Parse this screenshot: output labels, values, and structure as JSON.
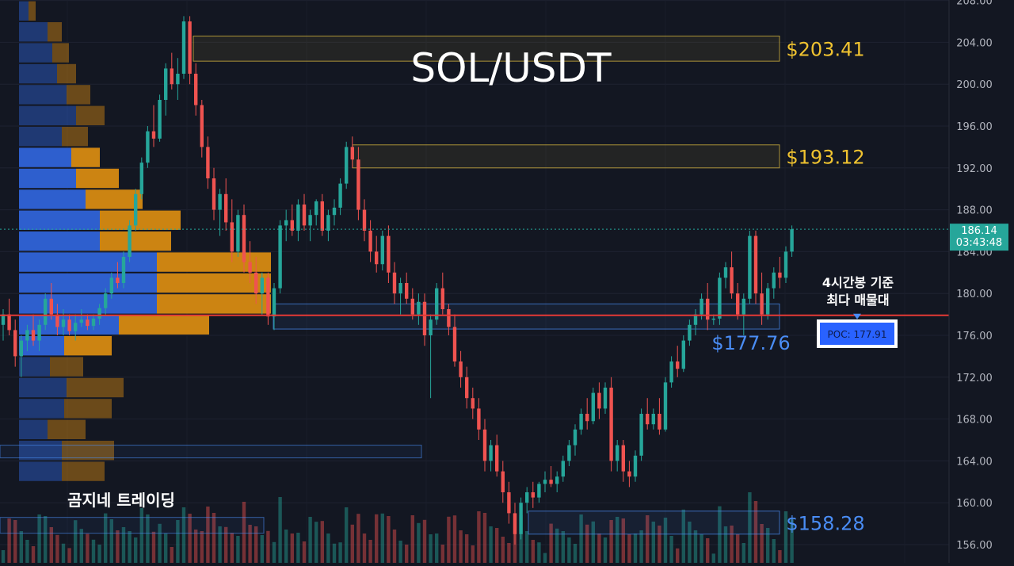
{
  "chart_data": {
    "type": "candlestick",
    "title": "SOL/USDT",
    "brand": "곰지네 트레이딩",
    "y_axis": {
      "range": [
        155,
        208
      ],
      "ticks": [
        156,
        160,
        164,
        168,
        172,
        176,
        180,
        184,
        188,
        192,
        196,
        200,
        204,
        208
      ],
      "tick_labels": [
        "156.00",
        "160.00",
        "164.00",
        "168.00",
        "172.00",
        "176.00",
        "180.00",
        "184.00",
        "188.00",
        "192.00",
        "196.00",
        "200.00",
        "204.00",
        "208.00"
      ]
    },
    "current_price": {
      "value": 186.14,
      "label": "186.14",
      "countdown": "03:43:48"
    },
    "poc": {
      "value": 177.91,
      "label": "POC: 177.91",
      "note_line1": "4시간봉 기준",
      "note_line2": "최다 매물대"
    },
    "zones": [
      {
        "label": "$203.41",
        "value": 203.41,
        "low": 202.2,
        "high": 204.6,
        "color": "#e8c440",
        "kind": "resistance"
      },
      {
        "label": "$193.12",
        "value": 193.12,
        "low": 192.0,
        "high": 194.2,
        "color": "#e8c440",
        "kind": "resistance"
      },
      {
        "label": "$177.76",
        "value": 177.76,
        "low": 176.6,
        "high": 179.0,
        "color": "#4a8df5",
        "kind": "support"
      },
      {
        "label": "$158.28",
        "value": 158.28,
        "low": 157.0,
        "high": 159.2,
        "color": "#4a8df5",
        "kind": "support"
      }
    ],
    "colors": {
      "up": "#26a69a",
      "down": "#ef5350",
      "volume_profile_buy": "#2f63d8",
      "volume_profile_sell": "#d68a12",
      "poc_line": "#e53935",
      "resistance_label": "#f0c330",
      "support_label": "#4a8df5",
      "current_price_bg": "#26a69a"
    },
    "candles": [
      [
        177,
        178.5,
        175.5,
        178
      ],
      [
        178,
        179.5,
        176,
        176.5
      ],
      [
        176.5,
        177.5,
        173,
        174
      ],
      [
        174,
        176,
        172,
        175.5
      ],
      [
        175.5,
        177,
        174.5,
        176.5
      ],
      [
        176.5,
        178,
        175,
        175.5
      ],
      [
        175.5,
        177.5,
        174.5,
        177
      ],
      [
        177,
        180,
        176.5,
        179.5
      ],
      [
        179.5,
        181,
        177.5,
        178
      ],
      [
        178,
        179,
        176,
        176.8
      ],
      [
        176.8,
        178.5,
        176,
        177.5
      ],
      [
        177.5,
        178,
        176,
        176.4
      ],
      [
        176.4,
        178,
        175.5,
        177.2
      ],
      [
        177.2,
        178.5,
        176.8,
        177.5
      ],
      [
        177.5,
        178,
        176.5,
        176.9
      ],
      [
        176.9,
        178,
        176.5,
        177.6
      ],
      [
        177.6,
        179,
        177,
        178.6
      ],
      [
        178.6,
        180.5,
        178,
        180
      ],
      [
        180,
        182,
        179.5,
        181.5
      ],
      [
        181.5,
        183,
        180.5,
        181
      ],
      [
        181,
        184,
        180.5,
        183.5
      ],
      [
        183.5,
        187,
        183,
        186.5
      ],
      [
        186.5,
        190,
        186,
        189.5
      ],
      [
        189.5,
        193,
        189,
        192.5
      ],
      [
        192.5,
        196,
        192,
        195.5
      ],
      [
        195.5,
        198,
        194,
        194.8
      ],
      [
        194.8,
        199,
        194.5,
        198.5
      ],
      [
        198.5,
        202,
        197,
        201.5
      ],
      [
        201.5,
        203,
        199.5,
        200
      ],
      [
        200,
        202.5,
        198.5,
        201
      ],
      [
        201,
        206.5,
        200.5,
        206
      ],
      [
        206,
        206.5,
        200,
        201
      ],
      [
        201,
        202,
        197,
        198
      ],
      [
        198,
        198.5,
        193,
        194
      ],
      [
        194,
        195,
        190,
        191
      ],
      [
        191,
        192,
        187,
        188
      ],
      [
        188,
        190,
        185.5,
        189.5
      ],
      [
        189.5,
        191,
        186,
        186.8
      ],
      [
        186.8,
        189,
        183,
        184
      ],
      [
        184,
        188,
        183.5,
        187.5
      ],
      [
        187.5,
        188.5,
        182,
        183
      ],
      [
        183,
        185,
        181,
        182
      ],
      [
        182,
        183.5,
        179,
        180
      ],
      [
        180,
        182,
        178,
        181.5
      ],
      [
        181.5,
        182,
        177,
        177.8
      ],
      [
        177.8,
        181,
        176.5,
        180.5
      ],
      [
        180.5,
        187,
        180,
        186.5
      ],
      [
        186.5,
        188,
        185,
        187
      ],
      [
        187,
        188.5,
        185.5,
        186
      ],
      [
        186,
        189,
        185,
        188.5
      ],
      [
        188.5,
        189.5,
        186,
        186.5
      ],
      [
        186.5,
        188,
        185,
        187.5
      ],
      [
        187.5,
        189,
        186.5,
        188.8
      ],
      [
        188.8,
        189.5,
        185.5,
        186
      ],
      [
        186,
        188,
        185,
        187.5
      ],
      [
        187.5,
        189,
        186.5,
        188.2
      ],
      [
        188.2,
        191,
        187.5,
        190.5
      ],
      [
        190.5,
        194.5,
        190,
        194
      ],
      [
        194,
        195,
        192,
        192.8
      ],
      [
        192.8,
        194,
        187,
        188
      ],
      [
        188,
        189,
        185,
        186
      ],
      [
        186,
        187,
        183,
        184
      ],
      [
        184,
        185.5,
        182,
        182.8
      ],
      [
        182.8,
        186,
        182.2,
        185.5
      ],
      [
        185.5,
        186.5,
        181,
        182
      ],
      [
        182,
        183,
        179,
        180
      ],
      [
        180,
        181.5,
        178,
        181
      ],
      [
        181,
        182,
        179,
        179.5
      ],
      [
        179.5,
        180.5,
        177.5,
        178
      ],
      [
        178,
        180,
        177,
        179.2
      ],
      [
        179.2,
        180,
        175,
        176
      ],
      [
        176,
        178,
        170,
        177.5
      ],
      [
        177.5,
        181,
        177,
        180.5
      ],
      [
        180.5,
        182,
        178,
        178.5
      ],
      [
        178.5,
        179,
        176,
        176.8
      ],
      [
        176.8,
        178,
        173,
        173.5
      ],
      [
        173.5,
        174.5,
        171,
        172
      ],
      [
        172,
        173,
        169,
        170
      ],
      [
        170,
        171,
        168,
        169
      ],
      [
        169,
        170,
        166,
        167
      ],
      [
        167,
        168,
        163,
        164
      ],
      [
        164,
        166,
        163,
        165.5
      ],
      [
        165.5,
        166.5,
        162.5,
        163
      ],
      [
        163,
        164,
        160,
        161
      ],
      [
        161,
        162,
        158,
        159
      ],
      [
        159,
        160,
        156,
        157
      ],
      [
        157,
        160.5,
        156.5,
        160
      ],
      [
        160,
        161.5,
        159,
        161
      ],
      [
        161,
        162,
        159.5,
        160.5
      ],
      [
        160.5,
        162,
        160,
        161.8
      ],
      [
        161.8,
        163,
        161,
        162.2
      ],
      [
        162.2,
        163.5,
        161.5,
        161.8
      ],
      [
        161.8,
        163,
        161,
        162.5
      ],
      [
        162.5,
        164.5,
        162,
        164
      ],
      [
        164,
        166,
        163.5,
        165.5
      ],
      [
        165.5,
        167.5,
        164.5,
        167
      ],
      [
        167,
        169,
        166.5,
        168.5
      ],
      [
        168.5,
        170,
        167,
        167.8
      ],
      [
        167.8,
        171,
        167.5,
        170.5
      ],
      [
        170.5,
        171.5,
        168,
        169
      ],
      [
        169,
        171.5,
        168.5,
        171
      ],
      [
        171,
        172,
        163,
        164
      ],
      [
        164,
        166,
        163,
        165.5
      ],
      [
        165.5,
        166,
        162,
        163
      ],
      [
        163,
        164,
        161.5,
        162.5
      ],
      [
        162.5,
        165,
        162,
        164.5
      ],
      [
        164.5,
        169,
        164,
        168.5
      ],
      [
        168.5,
        170,
        167,
        167.5
      ],
      [
        167.5,
        169,
        167,
        168.5
      ],
      [
        168.5,
        170,
        166.5,
        167
      ],
      [
        167,
        172,
        166.8,
        171.5
      ],
      [
        171.5,
        174,
        171,
        173.5
      ],
      [
        173.5,
        175,
        172,
        172.8
      ],
      [
        172.8,
        176,
        172.5,
        175.5
      ],
      [
        175.5,
        177.5,
        175,
        177
      ],
      [
        177,
        178.5,
        176,
        178
      ],
      [
        178,
        180,
        177.5,
        179.5
      ],
      [
        179.5,
        181,
        176.5,
        177.5
      ],
      [
        177.5,
        178,
        177,
        177.6
      ],
      [
        177.6,
        182,
        177,
        181.5
      ],
      [
        181.5,
        183,
        180.5,
        182.5
      ],
      [
        182.5,
        184,
        179.5,
        180
      ],
      [
        180,
        181,
        177.5,
        178
      ],
      [
        178,
        180,
        176,
        179.5
      ],
      [
        179.5,
        186,
        179,
        185.5
      ],
      [
        185.5,
        186,
        179,
        180
      ],
      [
        180,
        182,
        177,
        178
      ],
      [
        178,
        181,
        177.5,
        180.5
      ],
      [
        180.5,
        182.5,
        179.5,
        182
      ],
      [
        182,
        183.5,
        180.5,
        181.5
      ],
      [
        181.5,
        184.5,
        181,
        184
      ],
      [
        184,
        186.5,
        183.5,
        186.14
      ]
    ],
    "volume_profile": [
      [
        208.0,
        206.0,
        0.2,
        0.15
      ],
      [
        206.0,
        204.0,
        0.6,
        0.3
      ],
      [
        204.0,
        202.0,
        0.7,
        0.35
      ],
      [
        202.0,
        200.0,
        0.8,
        0.4
      ],
      [
        200.0,
        198.0,
        1.0,
        0.5
      ],
      [
        198.0,
        196.0,
        1.2,
        0.6
      ],
      [
        196.0,
        194.0,
        0.9,
        0.55
      ],
      [
        194.0,
        192.0,
        1.1,
        0.6
      ],
      [
        192.0,
        190.0,
        1.2,
        0.9
      ],
      [
        190.0,
        188.0,
        1.4,
        1.2
      ],
      [
        188.0,
        186.0,
        1.7,
        1.7
      ],
      [
        186.0,
        184.0,
        1.7,
        1.5
      ],
      [
        184.0,
        182.0,
        2.9,
        2.4
      ],
      [
        182.0,
        180.0,
        2.9,
        2.4
      ],
      [
        180.0,
        178.0,
        2.9,
        2.4
      ],
      [
        178.0,
        176.0,
        2.1,
        1.9
      ],
      [
        176.0,
        174.0,
        0.95,
        1.0
      ],
      [
        174.0,
        172.0,
        0.65,
        0.7
      ],
      [
        172.0,
        170.0,
        1.0,
        1.2
      ],
      [
        170.0,
        168.0,
        0.95,
        1.0
      ],
      [
        168.0,
        166.0,
        0.6,
        0.8
      ],
      [
        166.0,
        164.0,
        0.9,
        1.1
      ],
      [
        164.0,
        162.0,
        0.9,
        0.9
      ]
    ]
  }
}
